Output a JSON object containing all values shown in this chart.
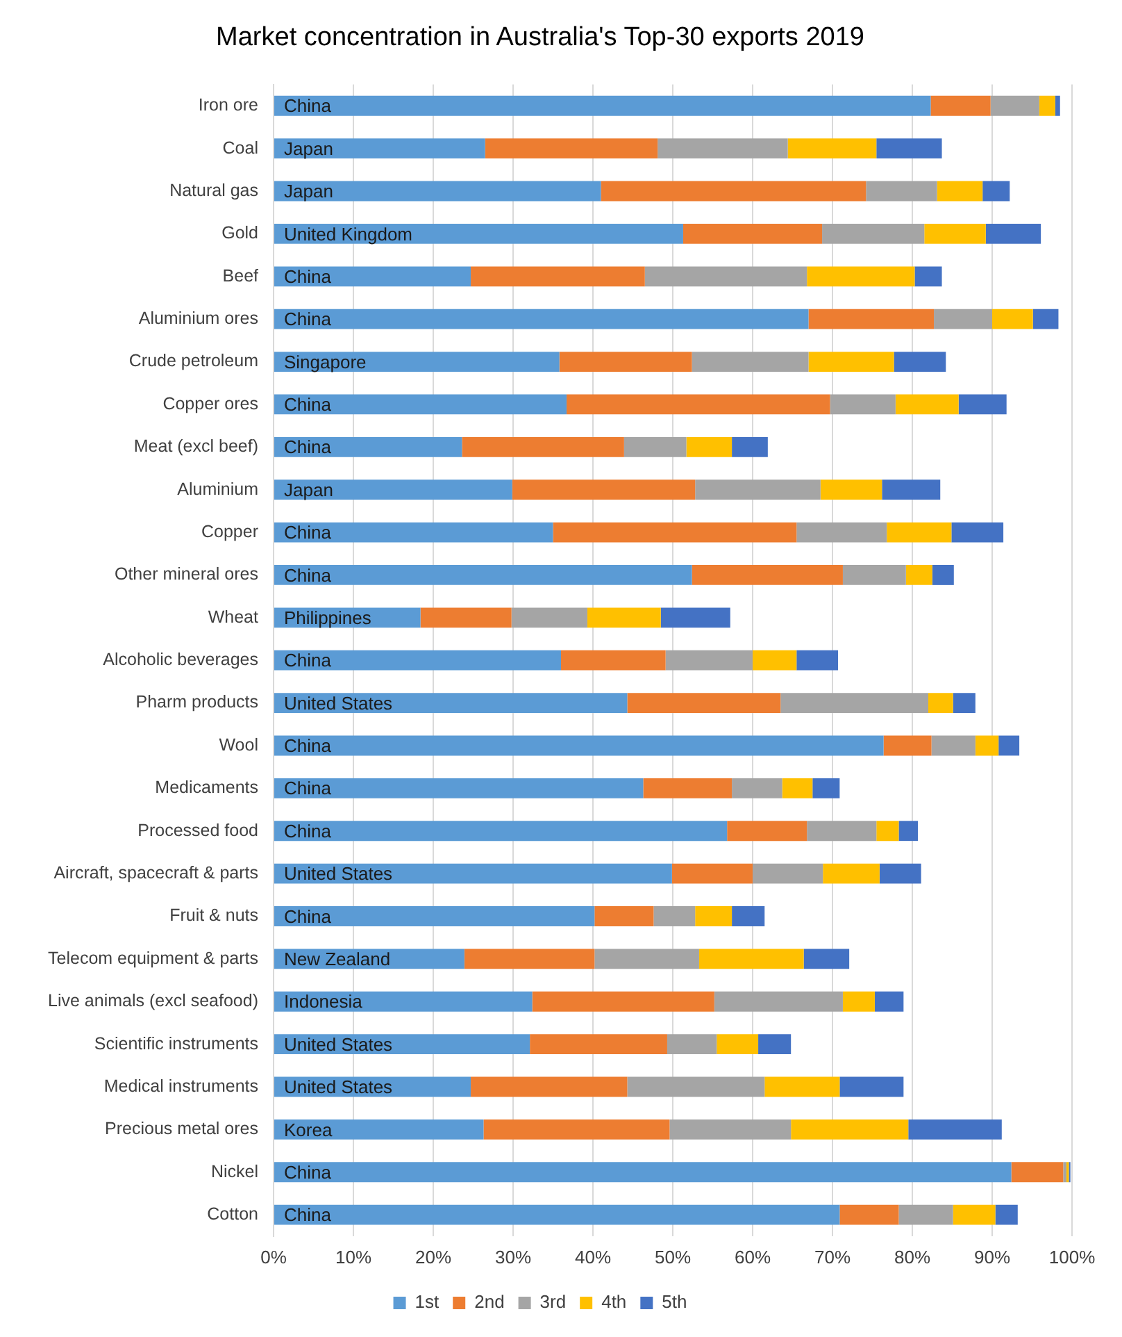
{
  "chart_data": {
    "type": "bar",
    "orientation": "horizontal",
    "stacked": true,
    "title": "Market concentration in Australia's Top-30 exports 2019",
    "categories": [
      "Iron ore",
      "Coal",
      "Natural gas",
      "Gold",
      "Beef",
      "Aluminium ores",
      "Crude petroleum",
      "Copper ores",
      "Meat (excl beef)",
      "Aluminium",
      "Copper",
      "Other mineral ores",
      "Wheat",
      "Alcoholic beverages",
      "Pharm products",
      "Wool",
      "Medicaments",
      "Processed food",
      "Aircraft, spacecraft & parts",
      "Fruit & nuts",
      "Telecom equipment & parts",
      "Live animals (excl seafood)",
      "Scientific instruments",
      "Medical instruments",
      "Precious metal ores",
      "Nickel",
      "Cotton"
    ],
    "series": [
      {
        "name": "1st",
        "color": "#5b9bd5",
        "values": [
          82.3,
          26.5,
          41.0,
          51.3,
          24.7,
          67.0,
          35.8,
          36.7,
          23.6,
          29.9,
          35.0,
          52.4,
          18.4,
          36.0,
          44.3,
          76.4,
          46.3,
          56.8,
          49.9,
          40.2,
          23.9,
          32.4,
          32.1,
          24.7,
          26.3,
          92.4,
          70.9
        ],
        "value_labels": [
          "China",
          "Japan",
          "Japan",
          "United Kingdom",
          "China",
          "China",
          "Singapore",
          "China",
          "China",
          "Japan",
          "China",
          "China",
          "Philippines",
          "China",
          "United States",
          "China",
          "China",
          "China",
          "United States",
          "China",
          "New Zealand",
          "Indonesia",
          "United States",
          "United States",
          "Korea",
          "China",
          "China"
        ]
      },
      {
        "name": "2nd",
        "color": "#ed7d31",
        "values": [
          7.5,
          21.6,
          33.2,
          17.4,
          21.8,
          15.7,
          16.6,
          33.0,
          20.3,
          22.9,
          30.5,
          18.9,
          11.4,
          13.1,
          19.2,
          6.0,
          11.1,
          10.0,
          10.1,
          7.4,
          16.3,
          22.8,
          17.2,
          19.6,
          23.3,
          6.5,
          7.4
        ]
      },
      {
        "name": "3rd",
        "color": "#a5a5a5",
        "values": [
          6.1,
          16.3,
          8.9,
          12.8,
          20.3,
          7.3,
          14.6,
          8.2,
          7.8,
          15.7,
          11.3,
          7.9,
          9.5,
          10.9,
          18.5,
          5.5,
          6.3,
          8.7,
          8.8,
          5.2,
          13.1,
          16.1,
          6.2,
          17.2,
          15.2,
          0.4,
          6.8
        ]
      },
      {
        "name": "4th",
        "color": "#ffc000",
        "values": [
          2.0,
          11.1,
          5.7,
          7.7,
          13.5,
          5.1,
          10.7,
          7.9,
          5.7,
          7.7,
          8.1,
          3.3,
          9.2,
          5.5,
          3.1,
          2.9,
          3.8,
          2.8,
          7.1,
          4.6,
          13.1,
          4.0,
          5.2,
          9.4,
          14.7,
          0.3,
          5.3
        ]
      },
      {
        "name": "5th",
        "color": "#4472c4",
        "values": [
          0.6,
          8.2,
          3.4,
          6.9,
          3.4,
          3.2,
          6.5,
          6.0,
          4.5,
          7.3,
          6.5,
          2.7,
          8.7,
          5.2,
          2.8,
          2.6,
          3.4,
          2.4,
          5.2,
          4.1,
          5.7,
          3.6,
          4.1,
          8.0,
          11.7,
          0.2,
          2.8
        ]
      }
    ],
    "xlim": [
      0,
      100
    ],
    "xticks": [
      {
        "value": 0,
        "label": "0%"
      },
      {
        "value": 10,
        "label": "10%"
      },
      {
        "value": 20,
        "label": "20%"
      },
      {
        "value": 30,
        "label": "30%"
      },
      {
        "value": 40,
        "label": "40%"
      },
      {
        "value": 50,
        "label": "50%"
      },
      {
        "value": 60,
        "label": "60%"
      },
      {
        "value": 70,
        "label": "70%"
      },
      {
        "value": 80,
        "label": "80%"
      },
      {
        "value": 90,
        "label": "90%"
      },
      {
        "value": 100,
        "label": "100%"
      }
    ],
    "grid": "x",
    "legend": "bottom"
  }
}
